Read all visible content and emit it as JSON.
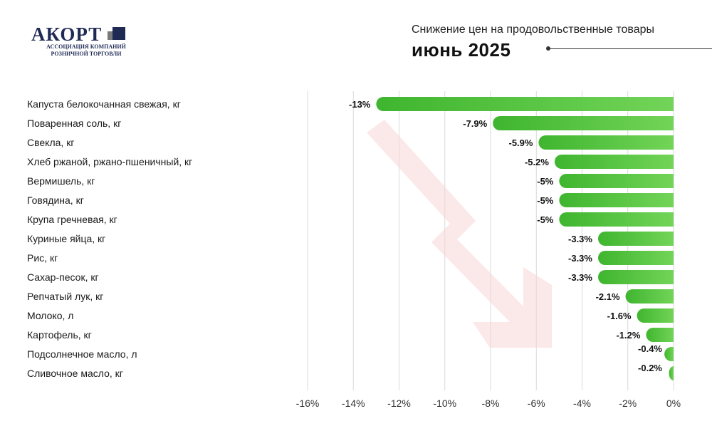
{
  "logo": {
    "brand": "АКОРТ",
    "line1": "АССОЦИАЦИЯ КОМПАНИЙ",
    "line2": "РОЗНИЧНОЙ ТОРГОВЛИ"
  },
  "header": {
    "subtitle": "Снижение цен на продовольственные товары",
    "title": "июнь 2025"
  },
  "colors": {
    "bar_start": "#3fb52f",
    "bar_end": "#72d458",
    "arrow": "#f7d6d6",
    "grid": "#d9d9d9",
    "brand": "#1f2b55"
  },
  "chart_data": {
    "type": "bar",
    "orientation": "horizontal",
    "title": "",
    "xlabel": "",
    "ylabel": "",
    "xlim": [
      -16,
      0
    ],
    "ticks": [
      -16,
      -14,
      -12,
      -10,
      -8,
      -6,
      -4,
      -2,
      0
    ],
    "tick_labels": [
      "-16%",
      "-14%",
      "-12%",
      "-10%",
      "-8%",
      "-6%",
      "-4%",
      "-2%",
      "0%"
    ],
    "grid": true,
    "categories": [
      "Капуста белокочанная свежая, кг",
      "Поваренная соль, кг",
      "Свекла, кг",
      "Хлеб ржаной, ржано-пшеничный, кг",
      "Вермишель, кг",
      "Говядина, кг",
      "Крупа гречневая, кг",
      "Куриные яйца, кг",
      "Рис, кг",
      "Сахар-песок, кг",
      "Репчатый лук, кг",
      "Молоко, л",
      "Картофель, кг",
      "Подсолнечное масло, л",
      "Сливочное масло, кг"
    ],
    "values": [
      -13,
      -7.9,
      -5.9,
      -5.2,
      -5,
      -5,
      -5,
      -3.3,
      -3.3,
      -3.3,
      -2.1,
      -1.6,
      -1.2,
      -0.4,
      -0.2
    ],
    "value_labels": [
      "-13%",
      "-7.9%",
      "-5.9%",
      "-5.2%",
      "-5%",
      "-5%",
      "-5%",
      "-3.3%",
      "-3.3%",
      "-3.3%",
      "-2.1%",
      "-1.6%",
      "-1.2%",
      "-0.4%",
      "-0.2%"
    ]
  }
}
